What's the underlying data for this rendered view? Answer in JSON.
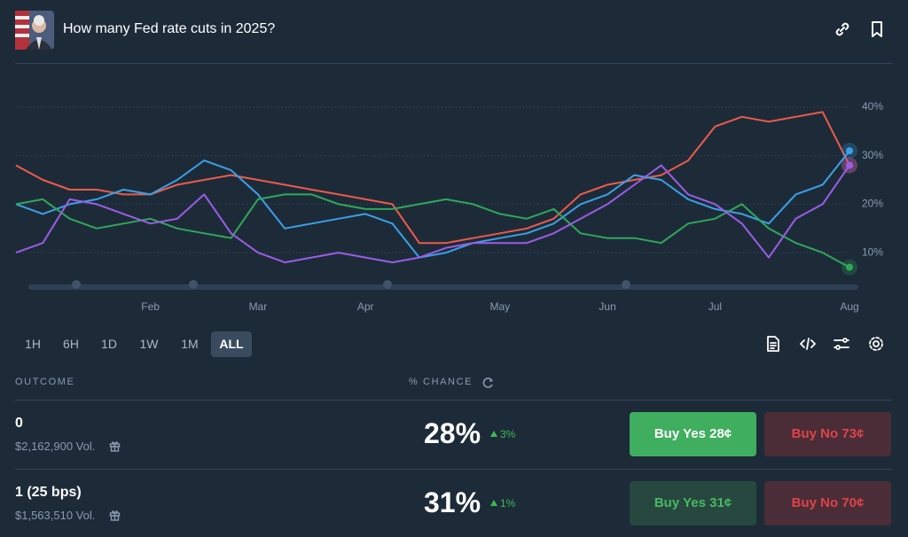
{
  "header": {
    "title": "How many Fed rate cuts in 2025?"
  },
  "chart_data": {
    "type": "line",
    "categories": [
      null,
      null,
      null,
      null,
      null,
      "Feb",
      null,
      null,
      null,
      "Mar",
      null,
      null,
      null,
      "Apr",
      null,
      null,
      null,
      null,
      "May",
      null,
      null,
      null,
      "Jun",
      null,
      null,
      null,
      "Jul",
      null,
      null,
      null,
      null,
      "Aug"
    ],
    "series": [
      {
        "color": "#ee5a4a",
        "values": [
          28,
          25,
          23,
          23,
          22,
          22,
          24,
          25,
          26,
          25,
          24,
          23,
          22,
          21,
          20,
          12,
          12,
          13,
          14,
          15,
          17,
          22,
          24,
          25,
          26,
          29,
          36,
          38,
          37,
          38,
          39,
          28
        ]
      },
      {
        "color": "#3ba0e6",
        "values": [
          20,
          18,
          20,
          21,
          23,
          22,
          25,
          29,
          27,
          22,
          15,
          16,
          17,
          18,
          16,
          9,
          10,
          12,
          13,
          14,
          16,
          20,
          22,
          26,
          25,
          21,
          19,
          18,
          16,
          22,
          24,
          31
        ]
      },
      {
        "color": "#2fa85a",
        "values": [
          20,
          21,
          17,
          15,
          16,
          17,
          15,
          14,
          13,
          21,
          22,
          22,
          20,
          19,
          19,
          20,
          21,
          20,
          18,
          17,
          19,
          14,
          13,
          13,
          12,
          16,
          17,
          20,
          15,
          12,
          10,
          7
        ]
      },
      {
        "color": "#9b5de5",
        "values": [
          10,
          12,
          21,
          20,
          18,
          16,
          17,
          22,
          14,
          10,
          8,
          9,
          10,
          9,
          8,
          9,
          11,
          12,
          12,
          12,
          14,
          17,
          20,
          24,
          28,
          22,
          20,
          16,
          9,
          17,
          20,
          28
        ]
      }
    ],
    "ylim": [
      4,
      44
    ],
    "yticks": [
      {
        "value": 10,
        "label": "10%"
      },
      {
        "value": 20,
        "label": "20%"
      },
      {
        "value": 30,
        "label": "30%"
      },
      {
        "value": 40,
        "label": "40%"
      }
    ],
    "grid": true
  },
  "ranges": [
    "1H",
    "6H",
    "1D",
    "1W",
    "1M",
    "ALL"
  ],
  "table": {
    "columns": [
      "OUTCOME",
      "% CHANCE"
    ],
    "rows": [
      {
        "name": "0",
        "volume": "$2,162,900 Vol.",
        "chance": "28%",
        "change": "3%",
        "buy_yes": "Buy Yes 28¢",
        "buy_no": "Buy No 73¢"
      },
      {
        "name": "1 (25 bps)",
        "volume": "$1,563,510 Vol.",
        "chance": "31%",
        "change": "1%",
        "buy_yes": "Buy Yes 31¢",
        "buy_no": "Buy No 70¢"
      }
    ]
  }
}
